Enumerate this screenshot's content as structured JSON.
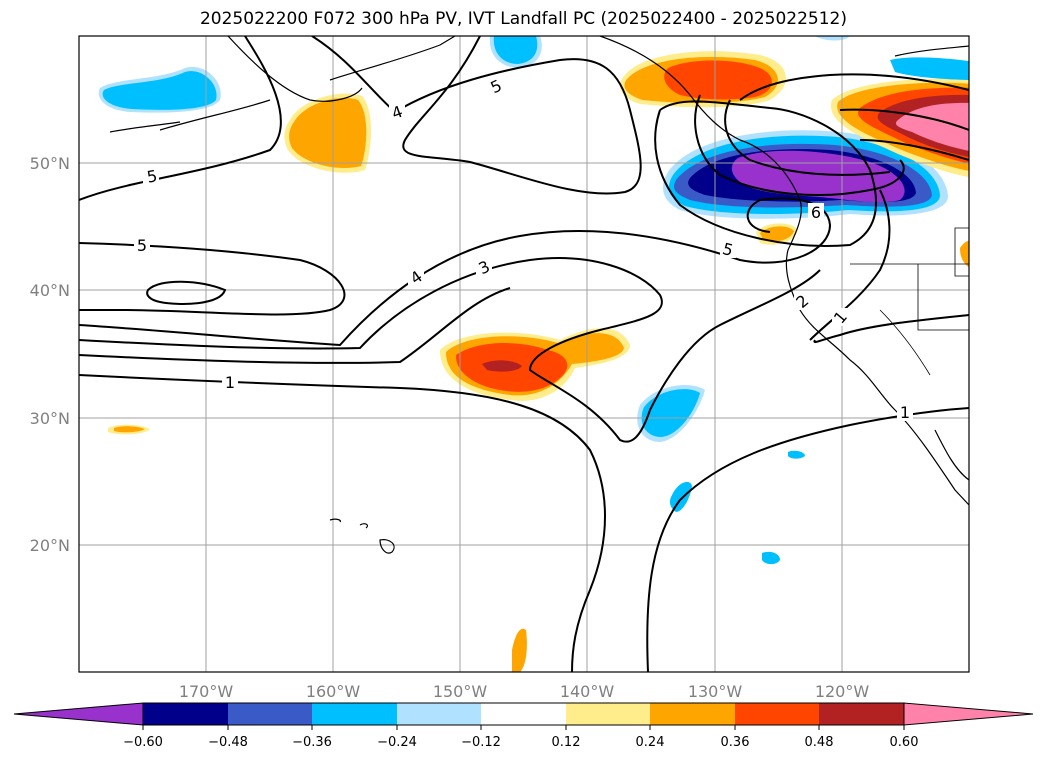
{
  "title": "2025022200 F072 300 hPa PV, IVT Landfall PC (2025022400 - 2025022512)",
  "map": {
    "lon_range": [
      -180,
      -110
    ],
    "lat_range": [
      10,
      60
    ],
    "lat_ticks": [
      "20°N",
      "30°N",
      "40°N",
      "50°N"
    ],
    "lon_ticks": [
      "170°W",
      "160°W",
      "150°W",
      "140°W",
      "130°W",
      "120°W"
    ]
  },
  "contours": {
    "variable": "300 hPa PV",
    "labels": [
      "5",
      "4",
      "5",
      "5",
      "4",
      "3",
      "1",
      "5",
      "6",
      "2",
      "1",
      "1"
    ]
  },
  "colorbar": {
    "ticks": [
      "−0.60",
      "−0.48",
      "−0.36",
      "−0.24",
      "−0.12",
      "0.12",
      "0.24",
      "0.36",
      "0.48",
      "0.60"
    ],
    "colors": [
      "#9932cc",
      "#00008b",
      "#3a5bc7",
      "#00bfff",
      "#b0e2ff",
      "#ffffff",
      "#ffec8b",
      "#ffa500",
      "#ff4500",
      "#b22222",
      "#ff82ab",
      "#ff82ab"
    ],
    "min_color": "#9932cc",
    "max_color": "#ff82ab"
  }
}
